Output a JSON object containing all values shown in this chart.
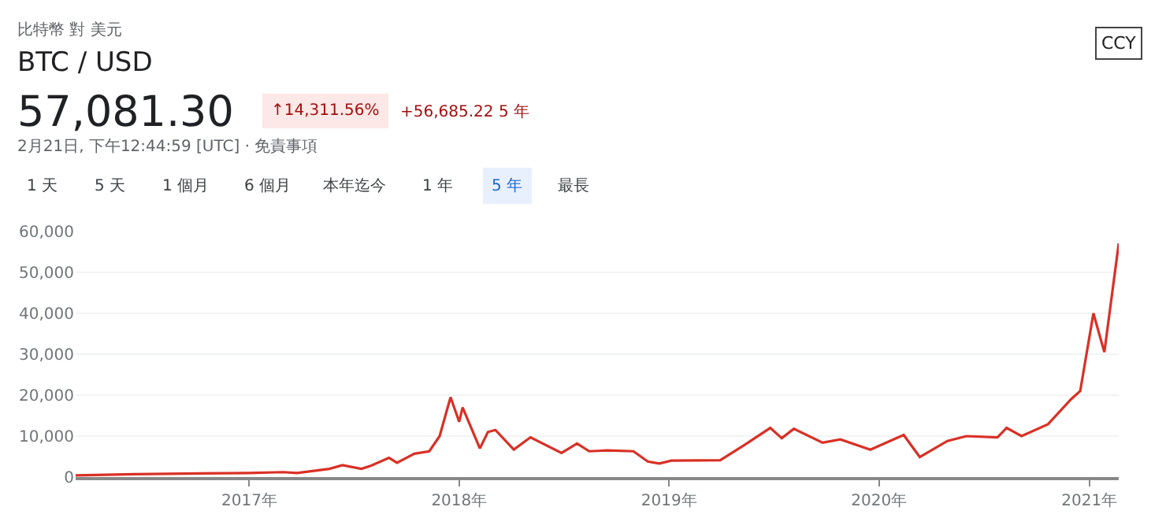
{
  "chart_data": {
    "type": "line",
    "title": "BTC / USD",
    "subtitle": "比特幣 對 美元",
    "annotations": [
      "57,081.30",
      "↑14,311.56%",
      "+56,685.22 5 年",
      "2月21日, 下午12:44:59 [UTC] · 免責事項",
      "CCY",
      "1 天",
      "5 天",
      "1 個月",
      "6 個月",
      "本年迄今",
      "1 年",
      "5 年",
      "最長"
    ],
    "x": [
      "2016-03-05",
      "2016-06-15",
      "2016-12-31",
      "2017-03-01",
      "2017-03-25",
      "2017-05-20",
      "2017-06-12",
      "2017-07-15",
      "2017-08-01",
      "2017-09-01",
      "2017-09-15",
      "2017-10-15",
      "2017-11-10",
      "2017-11-28",
      "2017-12-17",
      "2018-01-01",
      "2018-01-07",
      "2018-02-06",
      "2018-02-20",
      "2018-03-05",
      "2018-04-06",
      "2018-05-05",
      "2018-06-28",
      "2018-07-25",
      "2018-08-15",
      "2018-09-15",
      "2018-10-31",
      "2018-11-25",
      "2018-12-15",
      "2019-01-05",
      "2019-03-31",
      "2019-05-14",
      "2019-06-26",
      "2019-07-16",
      "2019-08-06",
      "2019-09-25",
      "2019-10-26",
      "2019-12-17",
      "2020-02-13",
      "2020-03-12",
      "2020-04-29",
      "2020-06-01",
      "2020-07-25",
      "2020-08-10",
      "2020-09-05",
      "2020-10-21",
      "2020-11-30",
      "2020-12-16",
      "2021-01-08",
      "2021-01-27",
      "2021-02-21"
    ],
    "series": [
      {
        "color": "#d93025",
        "values": [
          400,
          700,
          1000,
          1200,
          1000,
          2000,
          2900,
          2000,
          2800,
          4700,
          3500,
          5700,
          6300,
          10000,
          19500,
          13500,
          17000,
          7000,
          11000,
          11500,
          6700,
          9700,
          5900,
          8200,
          6300,
          6500,
          6300,
          3800,
          3300,
          4000,
          4100,
          8000,
          12000,
          9500,
          11800,
          8400,
          9200,
          6700,
          10300,
          4900,
          8800,
          10000,
          9700,
          12000,
          10000,
          12900,
          19000,
          21000,
          40000,
          30500,
          57081.3
        ]
      }
    ],
    "xlim": [
      "2016-03-05",
      "2021-02-21"
    ],
    "xticks": [
      {
        "value": "2017-01-01",
        "label": "2017年"
      },
      {
        "value": "2018-01-01",
        "label": "2018年"
      },
      {
        "value": "2019-01-01",
        "label": "2019年"
      },
      {
        "value": "2020-01-01",
        "label": "2020年"
      },
      {
        "value": "2021-01-01",
        "label": "2021年"
      }
    ],
    "ylim": [
      0,
      60000
    ],
    "yticks": [
      {
        "value": 0,
        "label": "0"
      },
      {
        "value": 10000,
        "label": "10,000"
      },
      {
        "value": 20000,
        "label": "20,000"
      },
      {
        "value": 30000,
        "label": "30,000"
      },
      {
        "value": 40000,
        "label": "40,000"
      },
      {
        "value": 50000,
        "label": "50,000"
      },
      {
        "value": 60000,
        "label": "60,000"
      }
    ],
    "grid": "y",
    "marker": "none",
    "line_style": "solid"
  }
}
